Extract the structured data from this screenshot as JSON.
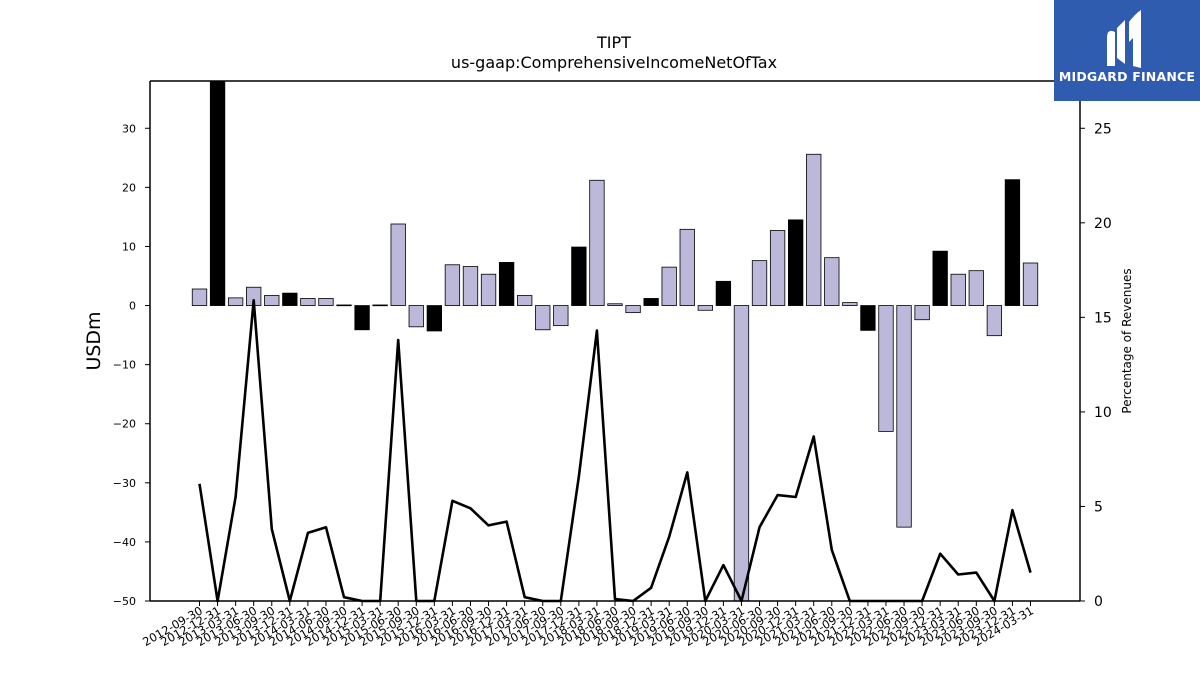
{
  "colors": {
    "positive_bar": "#bcb8d9",
    "highlight_bar": "#000000",
    "bar_edge": "#000000",
    "line": "#000000",
    "logo_bg": "#2f5cae"
  },
  "logo": {
    "name": "MIDGARD FINANCE",
    "icon": "midgard-logo-icon"
  },
  "chart_data": {
    "type": "bar",
    "title": "TIPT",
    "subtitle": "us-gaap:ComprehensiveIncomeNetOfTax",
    "ylabel": "USDm",
    "y2label": "Percentage of Revenues",
    "ylim": [
      -50,
      38
    ],
    "y2lim": [
      0,
      27.5
    ],
    "yticks": [
      -50,
      -40,
      -30,
      -20,
      -10,
      0,
      10,
      20,
      30
    ],
    "y2ticks": [
      0,
      5,
      10,
      15,
      20,
      25
    ],
    "grid": false,
    "categories": [
      "2012-09-30",
      "2012-12-31",
      "2013-03-31",
      "2013-06-30",
      "2013-09-30",
      "2013-12-31",
      "2014-03-31",
      "2014-06-30",
      "2014-09-30",
      "2014-12-31",
      "2015-03-31",
      "2015-06-30",
      "2015-09-30",
      "2015-12-31",
      "2016-03-31",
      "2016-06-30",
      "2016-09-30",
      "2016-12-31",
      "2017-03-31",
      "2017-06-30",
      "2017-09-30",
      "2017-12-31",
      "2018-03-31",
      "2018-06-30",
      "2018-09-30",
      "2018-12-31",
      "2019-03-31",
      "2019-06-30",
      "2019-09-30",
      "2019-12-31",
      "2020-03-31",
      "2020-06-30",
      "2020-09-30",
      "2020-12-31",
      "2021-03-31",
      "2021-06-30",
      "2021-09-30",
      "2021-12-31",
      "2022-03-31",
      "2022-06-30",
      "2022-09-30",
      "2022-12-31",
      "2023-03-31",
      "2023-06-30",
      "2023-09-30",
      "2023-12-31",
      "2024-03-31"
    ],
    "series": [
      {
        "values": [
          2.8,
          38,
          1.3,
          3.1,
          1.7,
          2.1,
          1.2,
          1.2,
          0.1,
          -4.1,
          0.1,
          13.8,
          -3.6,
          -4.3,
          6.9,
          6.6,
          5.3,
          7.3,
          1.7,
          -4.1,
          -3.4,
          9.9,
          21.2,
          0.3,
          -1.2,
          1.2,
          6.5,
          12.9,
          -0.8,
          4.1,
          -50,
          7.6,
          12.7,
          14.5,
          25.6,
          8.1,
          0.5,
          -4.2,
          -21.3,
          -37.5,
          -2.4,
          9.2,
          5.3,
          5.9,
          -5.1,
          21.3,
          7.2
        ],
        "highlight": [
          false,
          true,
          false,
          false,
          false,
          true,
          false,
          false,
          true,
          true,
          true,
          false,
          false,
          true,
          false,
          false,
          false,
          true,
          false,
          false,
          false,
          true,
          false,
          false,
          false,
          true,
          false,
          false,
          false,
          true,
          false,
          false,
          false,
          true,
          false,
          false,
          false,
          true,
          false,
          false,
          false,
          true,
          false,
          false,
          false,
          true,
          false
        ]
      },
      {
        "axis": "right",
        "values": [
          6.2,
          0,
          5.5,
          15.9,
          3.8,
          0,
          3.6,
          3.9,
          0.2,
          0,
          0,
          13.8,
          0,
          0,
          5.3,
          4.9,
          4.0,
          4.2,
          0.2,
          0,
          0,
          6.6,
          14.3,
          0.1,
          0,
          0.7,
          3.4,
          6.8,
          0,
          1.9,
          0,
          3.9,
          5.6,
          5.5,
          8.7,
          2.7,
          0,
          0,
          0,
          0,
          0,
          2.5,
          1.4,
          1.5,
          0,
          4.8,
          1.5
        ]
      }
    ]
  }
}
